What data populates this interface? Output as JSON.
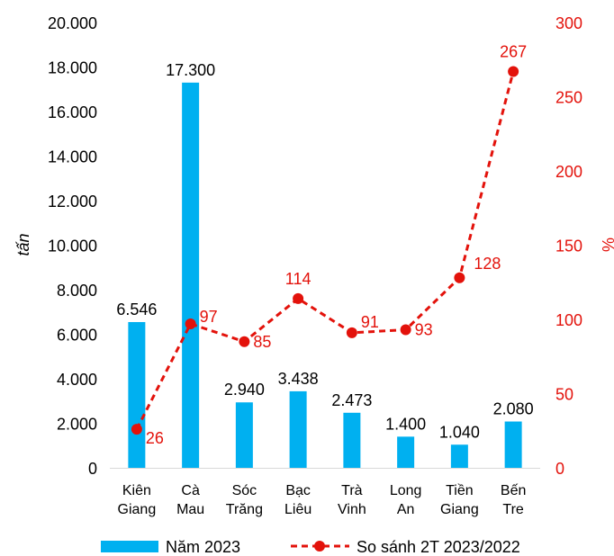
{
  "chart_data": {
    "type": "bar",
    "categories": [
      [
        "Kiên",
        "Giang"
      ],
      [
        "Cà",
        "Mau"
      ],
      [
        "Sóc",
        "Trăng"
      ],
      [
        "Bạc",
        "Liêu"
      ],
      [
        "Trà",
        "Vinh"
      ],
      [
        "Long",
        "An"
      ],
      [
        "Tiền",
        "Giang"
      ],
      [
        "Bến",
        "Tre"
      ]
    ],
    "series": [
      {
        "name": "Năm 2023",
        "type": "bar",
        "axis": "left",
        "values": [
          6546,
          17300,
          2940,
          3438,
          2473,
          1400,
          1040,
          2080
        ],
        "labels": [
          "6.546",
          "17.300",
          "2.940",
          "3.438",
          "2.473",
          "1.400",
          "1.040",
          "2.080"
        ],
        "color": "#00B0F0"
      },
      {
        "name": "So sánh 2T 2023/2022",
        "type": "line",
        "style": "dashed",
        "axis": "right",
        "values": [
          26,
          97,
          85,
          114,
          91,
          93,
          128,
          267
        ],
        "labels": [
          "26",
          "97",
          "85",
          "114",
          "91",
          "93",
          "128",
          "267"
        ],
        "color": "#E3120B"
      }
    ],
    "y_left": {
      "label": "tấn",
      "ylim": [
        0,
        20000
      ],
      "ticks": [
        0,
        2000,
        4000,
        6000,
        8000,
        10000,
        12000,
        14000,
        16000,
        18000,
        20000
      ],
      "tick_labels": [
        "0",
        "2.000",
        "4.000",
        "6.000",
        "8.000",
        "10.000",
        "12.000",
        "14.000",
        "16.000",
        "18.000",
        "20.000"
      ],
      "color": "#000000"
    },
    "y_right": {
      "label": "%",
      "ylim": [
        0,
        300
      ],
      "ticks": [
        0,
        50,
        100,
        150,
        200,
        250,
        300
      ],
      "tick_labels": [
        "0",
        "50",
        "100",
        "150",
        "200",
        "250",
        "300"
      ],
      "color": "#E3120B"
    },
    "grid": false,
    "legend_placement": "bottom"
  }
}
